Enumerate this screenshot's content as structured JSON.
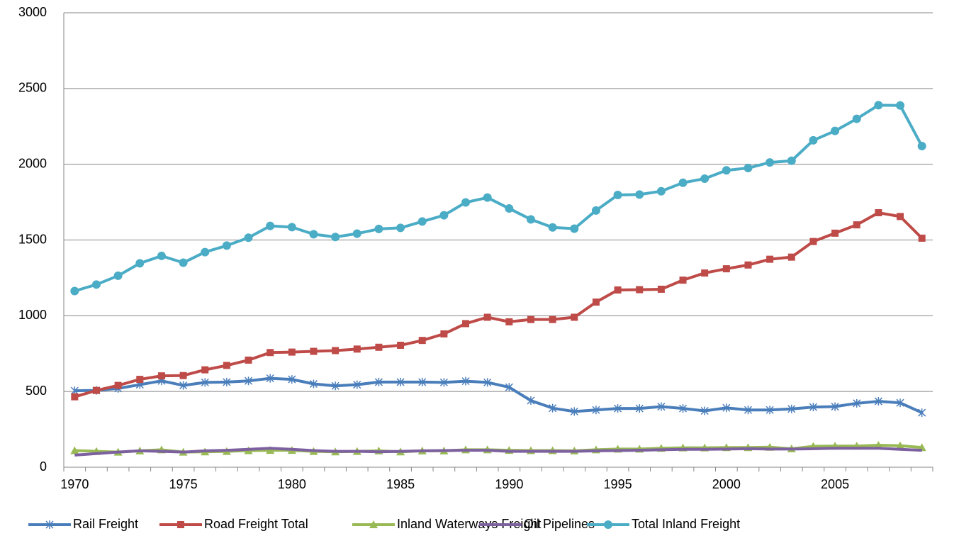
{
  "chart_data": {
    "type": "line",
    "categories": [
      1970,
      null,
      null,
      null,
      null,
      1975,
      null,
      null,
      null,
      null,
      1980,
      null,
      null,
      null,
      null,
      1985,
      null,
      null,
      null,
      null,
      1990,
      null,
      null,
      null,
      null,
      1995,
      null,
      null,
      null,
      null,
      2000,
      null,
      null,
      null,
      null,
      2005,
      null,
      null,
      null,
      null
    ],
    "series": [
      {
        "name": "Rail Freight",
        "color": "#4a7ebb",
        "marker": "asterisk",
        "values": [
          505,
          507,
          520,
          545,
          570,
          540,
          560,
          562,
          570,
          587,
          580,
          550,
          537,
          545,
          562,
          562,
          562,
          560,
          568,
          560,
          528,
          440,
          390,
          368,
          378,
          388,
          388,
          400,
          388,
          372,
          392,
          378,
          378,
          385,
          397,
          400,
          422,
          435,
          425,
          360
        ]
      },
      {
        "name": "Road Freight Total",
        "color": "#be4b48",
        "marker": "square",
        "values": [
          465,
          507,
          540,
          580,
          603,
          605,
          643,
          672,
          707,
          757,
          760,
          765,
          770,
          780,
          792,
          805,
          837,
          880,
          948,
          990,
          960,
          975,
          975,
          990,
          1090,
          1170,
          1172,
          1175,
          1235,
          1282,
          1310,
          1335,
          1373,
          1387,
          1490,
          1545,
          1600,
          1680,
          1655,
          1512
        ]
      },
      {
        "name": "Inland Waterways Freight",
        "color": "#98b954",
        "marker": "triangle",
        "values": [
          110,
          105,
          100,
          108,
          115,
          100,
          102,
          105,
          110,
          112,
          112,
          105,
          102,
          105,
          108,
          102,
          108,
          108,
          115,
          115,
          112,
          110,
          110,
          108,
          115,
          120,
          120,
          125,
          128,
          128,
          130,
          130,
          132,
          122,
          138,
          140,
          140,
          145,
          142,
          130
        ]
      },
      {
        "name": "Oil Pipelines",
        "color": "#7d60a0",
        "marker": "none",
        "values": [
          80,
          90,
          100,
          108,
          105,
          100,
          108,
          112,
          118,
          125,
          118,
          110,
          105,
          105,
          102,
          105,
          108,
          110,
          112,
          112,
          105,
          105,
          105,
          105,
          108,
          110,
          112,
          115,
          118,
          118,
          120,
          122,
          120,
          120,
          122,
          125,
          125,
          125,
          118,
          112
        ]
      },
      {
        "name": "Total Inland Freight",
        "color": "#4bacc6",
        "marker": "circle",
        "values": [
          1163,
          1206,
          1264,
          1346,
          1395,
          1350,
          1420,
          1463,
          1515,
          1593,
          1585,
          1538,
          1520,
          1542,
          1573,
          1580,
          1622,
          1663,
          1748,
          1780,
          1708,
          1636,
          1583,
          1575,
          1695,
          1797,
          1800,
          1822,
          1878,
          1905,
          1960,
          1975,
          2012,
          2023,
          2158,
          2220,
          2300,
          2390,
          2388,
          2120
        ]
      }
    ],
    "ylim": [
      0,
      3000
    ],
    "yticks": [
      0,
      500,
      1000,
      1500,
      2000,
      2500,
      3000
    ],
    "grid": true,
    "legend": "bottom"
  }
}
